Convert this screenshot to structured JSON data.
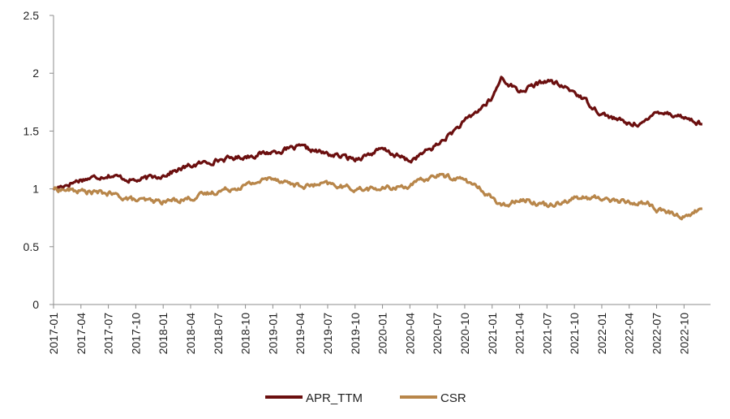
{
  "chart_data": {
    "type": "line",
    "title": "",
    "xlabel": "",
    "ylabel": "",
    "ylim": [
      0,
      2.5
    ],
    "yticks": [
      "0",
      "0.5",
      "1",
      "1.5",
      "2",
      "2.5"
    ],
    "x_tick_labels": [
      "2017-01",
      "2017-04",
      "2017-07",
      "2017-10",
      "2018-01",
      "2018-04",
      "2018-07",
      "2018-10",
      "2019-01",
      "2019-04",
      "2019-07",
      "2019-10",
      "2020-01",
      "2020-04",
      "2020-07",
      "2020-10",
      "2021-01",
      "2021-04",
      "2021-07",
      "2021-10",
      "2022-01",
      "2022-04",
      "2022-07",
      "2022-10"
    ],
    "x": [
      "2017-01",
      "2017-04",
      "2017-07",
      "2017-10",
      "2018-01",
      "2018-04",
      "2018-07",
      "2018-10",
      "2019-01",
      "2019-04",
      "2019-07",
      "2019-10",
      "2020-01",
      "2020-04",
      "2020-07",
      "2020-10",
      "2021-01",
      "2021-02",
      "2021-04",
      "2021-07",
      "2021-10",
      "2022-01",
      "2022-04",
      "2022-06",
      "2022-07",
      "2022-10",
      "2022-12"
    ],
    "series": [
      {
        "name": "APR_TTM",
        "color": "#6b0f0f",
        "values": [
          1.0,
          1.08,
          1.12,
          1.07,
          1.12,
          1.2,
          1.25,
          1.28,
          1.32,
          1.36,
          1.3,
          1.26,
          1.34,
          1.24,
          1.38,
          1.58,
          1.78,
          1.96,
          1.84,
          1.94,
          1.84,
          1.65,
          1.56,
          1.58,
          1.68,
          1.62,
          1.56
        ]
      },
      {
        "name": "CSR",
        "color": "#b8864a",
        "values": [
          1.0,
          0.98,
          0.96,
          0.9,
          0.89,
          0.92,
          0.98,
          1.03,
          1.1,
          1.02,
          1.04,
          1.0,
          1.0,
          1.03,
          1.12,
          1.08,
          0.93,
          0.84,
          0.92,
          0.86,
          0.92,
          0.92,
          0.88,
          0.88,
          0.82,
          0.76,
          0.83
        ]
      }
    ],
    "grid": false,
    "legend_position": "bottom-center"
  }
}
